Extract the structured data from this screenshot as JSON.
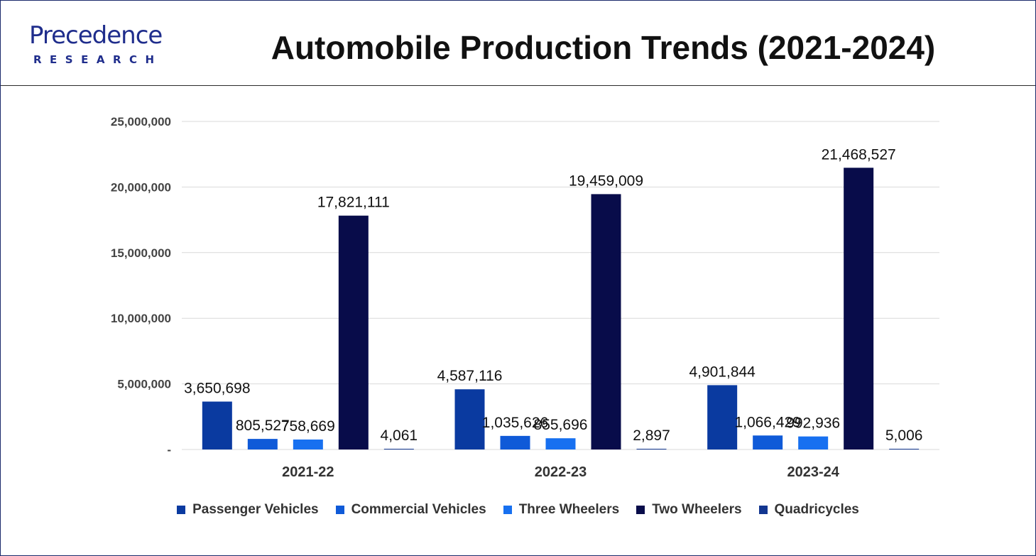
{
  "brand": {
    "logo_top": "Precedence",
    "logo_bottom": "RESEARCH"
  },
  "chart_data": {
    "type": "bar",
    "title": "Automobile Production Trends (2021-2024)",
    "xlabel": "",
    "ylabel": "",
    "ylim": [
      0,
      25000000
    ],
    "y_ticks": [
      0,
      5000000,
      10000000,
      15000000,
      20000000,
      25000000
    ],
    "y_tick_labels": [
      "-",
      "5,000,000",
      "10,000,000",
      "15,000,000",
      "20,000,000",
      "25,000,000"
    ],
    "grid": true,
    "legend_position": "bottom",
    "categories": [
      "2021-22",
      "2022-23",
      "2023-24"
    ],
    "series": [
      {
        "name": "Passenger Vehicles",
        "color": "#0a3aa0",
        "values": [
          3650698,
          4587116,
          4901844
        ],
        "labels": [
          "3,650,698",
          "4,587,116",
          "4,901,844"
        ]
      },
      {
        "name": "Commercial Vehicles",
        "color": "#0f5ad8",
        "values": [
          805527,
          1035626,
          1066429
        ],
        "labels": [
          "805,527",
          "1,035,626",
          "1,066,429"
        ]
      },
      {
        "name": "Three Wheelers",
        "color": "#1770f0",
        "values": [
          758669,
          855696,
          992936
        ],
        "labels": [
          "758,669",
          "855,696",
          "992,936"
        ]
      },
      {
        "name": "Two Wheelers",
        "color": "#080c4a",
        "values": [
          17821111,
          19459009,
          21468527
        ],
        "labels": [
          "17,821,111",
          "19,459,009",
          "21,468,527"
        ]
      },
      {
        "name": "Quadricycles",
        "color": "#123690",
        "values": [
          4061,
          2897,
          5006
        ],
        "labels": [
          "4,061",
          "2,897",
          "5,006"
        ]
      }
    ]
  }
}
